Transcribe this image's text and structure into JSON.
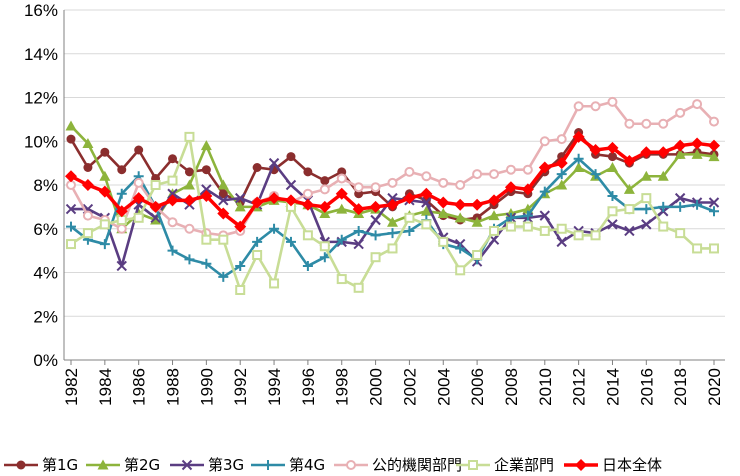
{
  "chart_data": {
    "type": "line",
    "title": "",
    "xlabel": "",
    "ylabel": "",
    "x": [
      1982,
      1983,
      1984,
      1985,
      1986,
      1987,
      1988,
      1989,
      1990,
      1991,
      1992,
      1993,
      1994,
      1995,
      1996,
      1997,
      1998,
      1999,
      2000,
      2001,
      2002,
      2003,
      2004,
      2005,
      2006,
      2007,
      2008,
      2009,
      2010,
      2011,
      2012,
      2013,
      2014,
      2015,
      2016,
      2017,
      2018,
      2019,
      2020
    ],
    "x_tick_labels": [
      "1982",
      "1984",
      "1986",
      "1988",
      "1990",
      "1992",
      "1994",
      "1996",
      "1998",
      "2000",
      "2002",
      "2004",
      "2006",
      "2008",
      "2010",
      "2012",
      "2014",
      "2016",
      "2018",
      "2020"
    ],
    "y_tick_labels": [
      "0%",
      "2%",
      "4%",
      "6%",
      "8%",
      "10%",
      "12%",
      "14%",
      "16%"
    ],
    "ylim": [
      0,
      16
    ],
    "grid": "horizontal",
    "legend_position": "bottom",
    "series": [
      {
        "name": "第1G",
        "color": "#8B2E2E",
        "marker": "circle",
        "values": [
          10.1,
          8.8,
          9.5,
          8.7,
          9.6,
          8.3,
          9.2,
          8.6,
          8.7,
          7.6,
          7.2,
          8.8,
          8.7,
          9.3,
          8.6,
          8.2,
          8.6,
          7.6,
          7.7,
          7.0,
          7.6,
          7.3,
          6.6,
          6.4,
          6.5,
          7.1,
          7.7,
          7.6,
          8.6,
          9.3,
          10.4,
          9.4,
          9.3,
          9.0,
          9.4,
          9.4,
          9.4,
          9.5,
          9.4
        ]
      },
      {
        "name": "第2G",
        "color": "#8DB43C",
        "marker": "triangle",
        "values": [
          10.7,
          9.9,
          8.4,
          6.0,
          6.7,
          6.4,
          7.6,
          8.0,
          9.8,
          8.0,
          7.0,
          7.0,
          7.3,
          7.2,
          7.1,
          6.7,
          6.9,
          6.7,
          6.9,
          6.3,
          6.6,
          6.8,
          6.7,
          6.5,
          6.3,
          6.6,
          6.7,
          6.9,
          7.6,
          8.0,
          8.8,
          8.4,
          8.8,
          7.8,
          8.4,
          8.4,
          9.4,
          9.4,
          9.3
        ]
      },
      {
        "name": "第3G",
        "color": "#5A3D82",
        "marker": "x",
        "values": [
          6.9,
          6.9,
          6.5,
          4.3,
          7.1,
          6.5,
          7.6,
          7.1,
          7.8,
          7.3,
          7.4,
          7.1,
          9.0,
          8.0,
          7.3,
          5.4,
          5.4,
          5.3,
          6.4,
          7.4,
          7.3,
          7.2,
          5.6,
          5.3,
          4.5,
          5.5,
          6.5,
          6.5,
          6.6,
          5.4,
          5.9,
          5.8,
          6.2,
          5.9,
          6.2,
          6.8,
          7.4,
          7.2,
          7.2
        ]
      },
      {
        "name": "第4G",
        "color": "#2E8BA6",
        "marker": "plus",
        "values": [
          6.1,
          5.5,
          5.3,
          7.6,
          8.4,
          7.0,
          5.0,
          4.6,
          4.4,
          3.8,
          4.3,
          5.4,
          6.0,
          5.4,
          4.3,
          4.7,
          5.5,
          5.9,
          5.7,
          5.8,
          5.9,
          6.4,
          5.3,
          5.1,
          4.6,
          6.0,
          6.5,
          6.6,
          7.7,
          8.5,
          9.2,
          8.5,
          7.5,
          6.9,
          6.9,
          7.0,
          7.0,
          7.1,
          6.8
        ]
      },
      {
        "name": "公的機関部門",
        "color": "#E8B0B4",
        "marker": "circle-open",
        "values": [
          8.0,
          6.6,
          6.4,
          6.0,
          8.1,
          7.0,
          6.3,
          6.0,
          5.8,
          5.7,
          5.9,
          7.2,
          7.5,
          7.2,
          7.6,
          7.8,
          8.3,
          7.9,
          7.9,
          8.1,
          8.6,
          8.4,
          8.1,
          8.0,
          8.5,
          8.5,
          8.7,
          8.7,
          10.0,
          10.1,
          11.6,
          11.6,
          11.8,
          10.8,
          10.8,
          10.8,
          11.3,
          11.7,
          10.9
        ]
      },
      {
        "name": "企業部門",
        "color": "#C8DD96",
        "marker": "square-open",
        "values": [
          5.3,
          5.8,
          6.2,
          6.4,
          6.5,
          8.0,
          8.2,
          10.2,
          5.5,
          5.5,
          3.2,
          4.8,
          3.5,
          7.0,
          5.7,
          5.2,
          3.7,
          3.3,
          4.7,
          5.1,
          6.5,
          6.2,
          5.4,
          4.1,
          4.8,
          5.9,
          6.1,
          6.1,
          5.9,
          6.0,
          5.7,
          5.7,
          6.8,
          6.9,
          7.4,
          6.1,
          5.8,
          5.1,
          5.1
        ]
      },
      {
        "name": "日本全体",
        "color": "#FF0000",
        "marker": "diamond",
        "values": [
          8.4,
          8.0,
          7.7,
          6.8,
          7.4,
          7.0,
          7.3,
          7.3,
          7.5,
          6.7,
          6.1,
          7.2,
          7.4,
          7.3,
          7.1,
          7.0,
          7.6,
          6.9,
          7.0,
          7.1,
          7.4,
          7.6,
          7.2,
          7.1,
          7.1,
          7.3,
          7.9,
          7.8,
          8.8,
          9.0,
          10.2,
          9.6,
          9.7,
          9.1,
          9.5,
          9.5,
          9.8,
          9.9,
          9.8
        ]
      }
    ]
  }
}
